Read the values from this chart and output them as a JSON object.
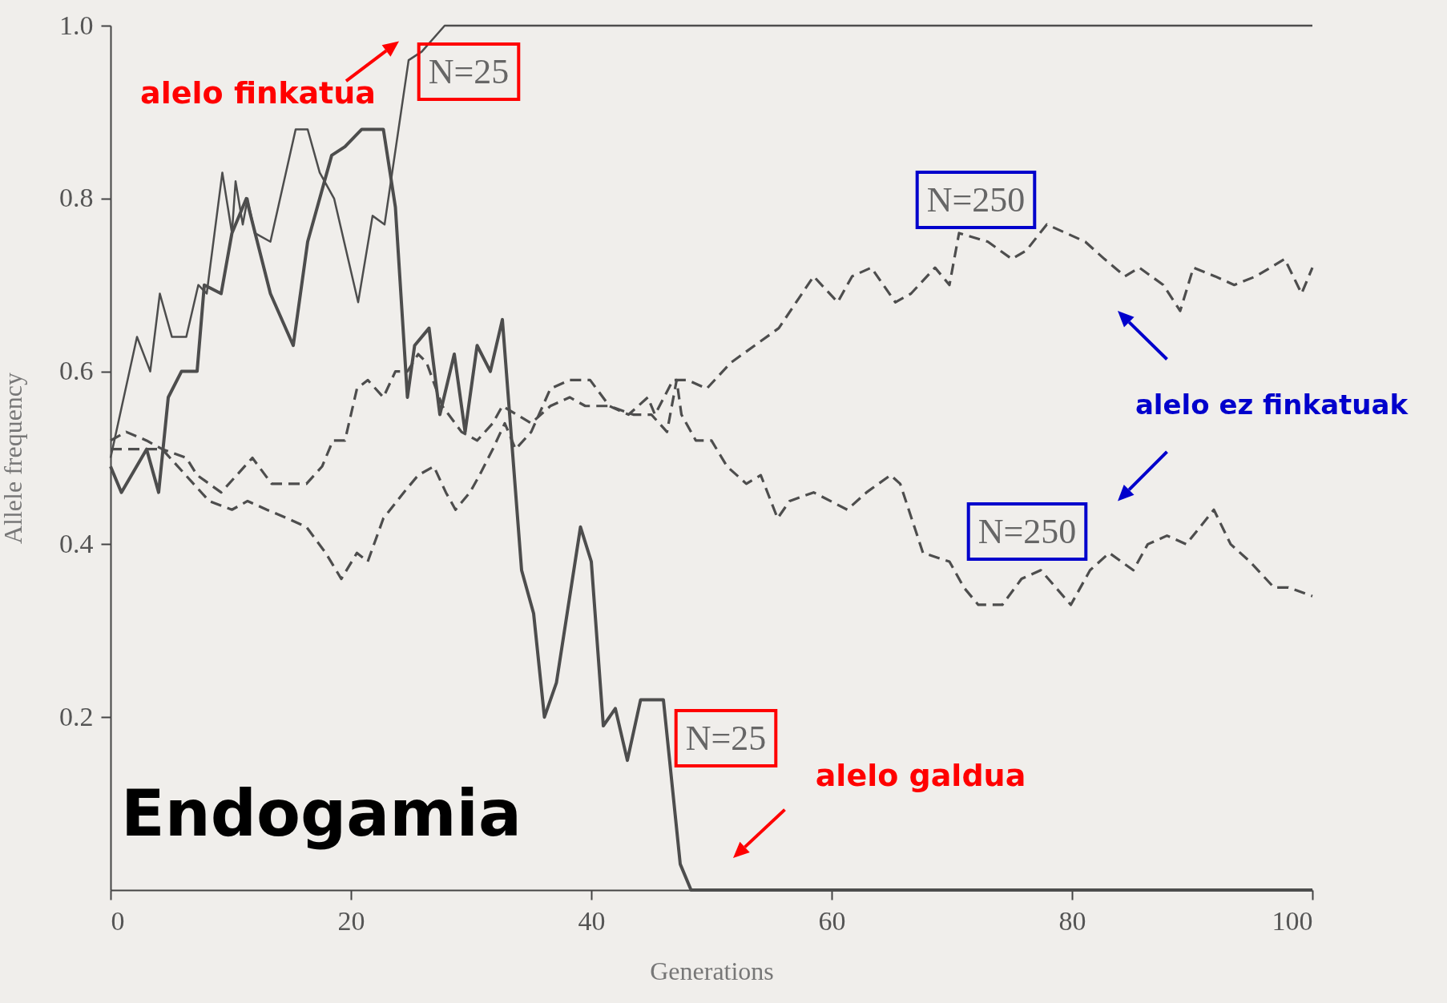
{
  "chart_data": {
    "type": "line",
    "xlabel": "Generations",
    "ylabel": "Allele frequency",
    "xlim": [
      0,
      100
    ],
    "ylim": [
      0,
      1
    ],
    "xticks": [
      0,
      20,
      40,
      60,
      80,
      100
    ],
    "yticks": [
      0.2,
      0.4,
      0.6,
      0.8,
      {
        "value": 1,
        "label": "1.0"
      }
    ],
    "series": [
      {
        "color": "#4d4d4d",
        "line_style": "solid",
        "x": [
          0,
          2.2,
          3.3,
          4.1,
          5.1,
          6.3,
          7.3,
          8,
          9.3,
          10.1,
          10.4,
          11,
          11.4,
          12,
          13.3,
          15.4,
          16.4,
          17.4,
          18.6,
          20.6,
          21.8,
          22.8,
          24.8,
          25.9,
          27.8,
          100
        ],
        "values": [
          0.5,
          0.64,
          0.6,
          0.69,
          0.64,
          0.64,
          0.7,
          0.69,
          0.83,
          0.76,
          0.82,
          0.77,
          0.8,
          0.76,
          0.75,
          0.88,
          0.88,
          0.83,
          0.8,
          0.68,
          0.78,
          0.77,
          0.96,
          0.97,
          1.0,
          1.0
        ]
      },
      {
        "color": "#4d4d4d",
        "line_style": "solid",
        "x": [
          0,
          0.9,
          3,
          4,
          4.8,
          5.9,
          7.2,
          7.8,
          9.2,
          10.1,
          11.3,
          13.3,
          15.2,
          16.4,
          18.4,
          19.5,
          20.9,
          22.7,
          23.7,
          24.7,
          25.3,
          26.5,
          27.4,
          28.6,
          29.5,
          30.5,
          31.6,
          32.6,
          34.2,
          35.2,
          36.1,
          37.1,
          39.1,
          40,
          41,
          42,
          43,
          44.1,
          46,
          47.4,
          48.3,
          100
        ],
        "values": [
          0.49,
          0.46,
          0.51,
          0.46,
          0.57,
          0.6,
          0.6,
          0.7,
          0.69,
          0.76,
          0.8,
          0.69,
          0.63,
          0.75,
          0.85,
          0.86,
          0.88,
          0.88,
          0.79,
          0.57,
          0.63,
          0.65,
          0.55,
          0.62,
          0.53,
          0.63,
          0.6,
          0.66,
          0.37,
          0.32,
          0.2,
          0.24,
          0.42,
          0.38,
          0.19,
          0.21,
          0.15,
          0.22,
          0.22,
          0.03,
          0,
          0
        ]
      },
      {
        "color": "#4d4d4d",
        "line_style": "dashed",
        "x": [
          0,
          2.7,
          4.3,
          6.9,
          8.2,
          10.1,
          11.4,
          13,
          14.7,
          16.3,
          17.9,
          19.2,
          20.5,
          21.4,
          22.7,
          24.4,
          25.6,
          26.9,
          27.9,
          28.7,
          29.9,
          30.7,
          31.8,
          32.8,
          33.7,
          35,
          36.6,
          38.2,
          39.9,
          41.5,
          43.1,
          44.7,
          45.3,
          46.8,
          48,
          49.6,
          51.6,
          53.6,
          55.6,
          58.5,
          60.5,
          61.7,
          63.3,
          65.3,
          66.6,
          68.6,
          69.8,
          70.6,
          73,
          75,
          76.2,
          77.9,
          79.5,
          81.1,
          82.7,
          84.4,
          85.6,
          87.6,
          89,
          90.1,
          91.9,
          93.5,
          95.3,
          97.7,
          99.1,
          100
        ],
        "values": [
          0.51,
          0.51,
          0.51,
          0.47,
          0.45,
          0.44,
          0.45,
          0.44,
          0.43,
          0.42,
          0.39,
          0.36,
          0.39,
          0.38,
          0.43,
          0.46,
          0.48,
          0.49,
          0.46,
          0.44,
          0.46,
          0.48,
          0.51,
          0.54,
          0.51,
          0.53,
          0.58,
          0.59,
          0.59,
          0.56,
          0.55,
          0.57,
          0.55,
          0.59,
          0.59,
          0.58,
          0.61,
          0.63,
          0.65,
          0.71,
          0.68,
          0.71,
          0.72,
          0.68,
          0.69,
          0.72,
          0.7,
          0.76,
          0.75,
          0.73,
          0.74,
          0.77,
          0.76,
          0.75,
          0.73,
          0.71,
          0.72,
          0.7,
          0.67,
          0.72,
          0.71,
          0.7,
          0.71,
          0.73,
          0.69,
          0.72
        ]
      },
      {
        "color": "#4d4d4d",
        "line_style": "dashed",
        "x": [
          0,
          1.3,
          3,
          4.3,
          6.3,
          7.2,
          9.2,
          10.5,
          11.8,
          13.4,
          15,
          16.3,
          17.6,
          18.5,
          19.5,
          20.5,
          21.4,
          22.7,
          23.7,
          24.7,
          25.6,
          26.3,
          27.6,
          29.2,
          30.5,
          31.8,
          32.6,
          35,
          36.6,
          38.2,
          39.5,
          41.5,
          43.5,
          45,
          46.3,
          47.1,
          47.5,
          48.7,
          50,
          51.3,
          52.9,
          54.1,
          55.5,
          56.5,
          58.5,
          61.3,
          62.9,
          64.9,
          65.7,
          67.6,
          69.8,
          71,
          72.2,
          74.2,
          75.8,
          77.4,
          79.9,
          81.5,
          83.1,
          85.1,
          86.3,
          87.9,
          89.5,
          91.8,
          93.2,
          94.8,
          96.8,
          98,
          100
        ],
        "values": [
          0.52,
          0.53,
          0.52,
          0.51,
          0.5,
          0.48,
          0.46,
          0.48,
          0.5,
          0.47,
          0.47,
          0.47,
          0.49,
          0.52,
          0.52,
          0.58,
          0.59,
          0.57,
          0.6,
          0.6,
          0.62,
          0.61,
          0.56,
          0.53,
          0.52,
          0.54,
          0.56,
          0.54,
          0.56,
          0.57,
          0.56,
          0.56,
          0.55,
          0.55,
          0.53,
          0.59,
          0.55,
          0.52,
          0.52,
          0.49,
          0.47,
          0.48,
          0.43,
          0.45,
          0.46,
          0.44,
          0.46,
          0.48,
          0.47,
          0.39,
          0.38,
          0.35,
          0.33,
          0.33,
          0.36,
          0.37,
          0.33,
          0.37,
          0.39,
          0.37,
          0.4,
          0.41,
          0.4,
          0.44,
          0.4,
          0.38,
          0.35,
          0.35,
          0.34
        ]
      }
    ],
    "annotations": [
      "alelo finkatua",
      "N=25",
      "N=250",
      "alelo ez finkatuak",
      "N=250",
      "N=25",
      "alelo galdua",
      "Endogamia"
    ]
  }
}
